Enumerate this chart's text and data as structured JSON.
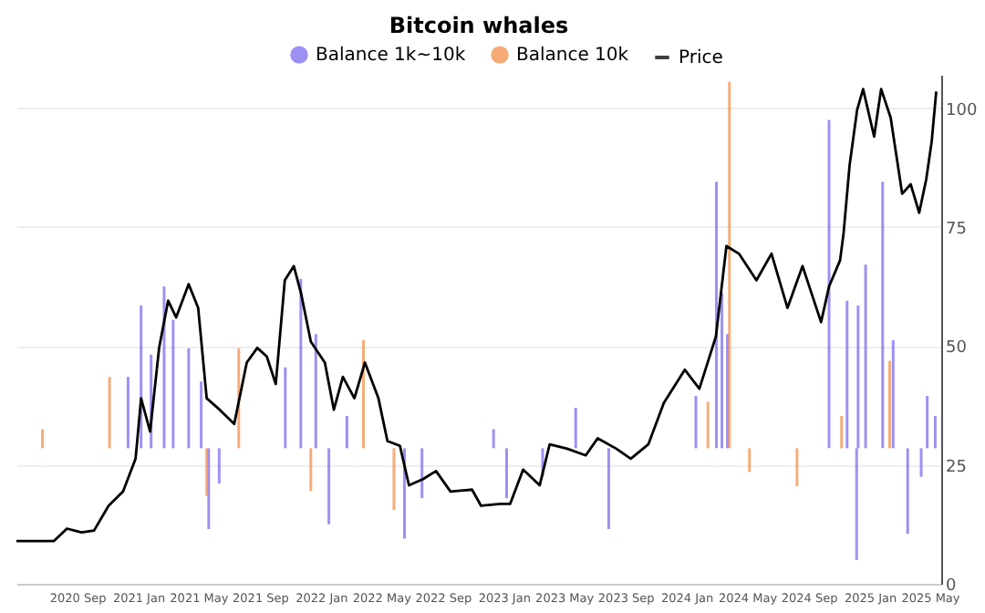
{
  "chart_data": {
    "type": "line",
    "title": "Bitcoin whales",
    "xlim": [
      "2020-05-01",
      "2025-05-22"
    ],
    "xticks": [
      {
        "value": "2020-09-01",
        "label": "2020 Sep"
      },
      {
        "value": "2021-01-01",
        "label": "2021 Jan"
      },
      {
        "value": "2021-05-01",
        "label": "2021 May"
      },
      {
        "value": "2021-09-01",
        "label": "2021 Sep"
      },
      {
        "value": "2022-01-01",
        "label": "2022 Jan"
      },
      {
        "value": "2022-05-01",
        "label": "2022 May"
      },
      {
        "value": "2022-09-01",
        "label": "2022 Sep"
      },
      {
        "value": "2023-01-01",
        "label": "2023 Jan"
      },
      {
        "value": "2023-05-01",
        "label": "2023 May"
      },
      {
        "value": "2023-09-01",
        "label": "2023 Sep"
      },
      {
        "value": "2024-01-01",
        "label": "2024 Jan"
      },
      {
        "value": "2024-05-01",
        "label": "2024 May"
      },
      {
        "value": "2024-09-01",
        "label": "2024 Sep"
      },
      {
        "value": "2025-01-01",
        "label": "2025 Jan"
      },
      {
        "value": "2025-05-01",
        "label": "2025 May"
      }
    ],
    "ylim": [
      0,
      107
    ],
    "yticks": [
      0,
      25,
      50,
      75,
      100
    ],
    "grid": "y",
    "legend": "top",
    "line_style": "solid",
    "series": [
      {
        "name": "Balance 1k~10k",
        "type": "bar",
        "color": "#7b6cf0",
        "x": [
          "2020-12-10",
          "2021-01-05",
          "2021-01-25",
          "2021-02-20",
          "2021-03-10",
          "2021-04-10",
          "2021-05-05",
          "2021-05-20",
          "2021-06-10",
          "2021-10-20",
          "2021-11-20",
          "2021-12-20",
          "2022-01-15",
          "2022-02-20",
          "2022-06-15",
          "2022-07-20",
          "2022-12-10",
          "2023-01-05",
          "2023-03-18",
          "2023-05-23",
          "2023-07-28",
          "2024-01-18",
          "2024-02-28",
          "2024-03-10",
          "2024-03-21",
          "2024-10-10",
          "2024-11-15",
          "2024-12-04",
          "2024-12-07",
          "2024-12-22",
          "2025-01-25",
          "2025-02-15",
          "2025-03-16",
          "2025-04-12",
          "2025-04-24",
          "2025-05-10"
        ],
        "base": [
          28.5,
          28.5,
          28.5,
          28.5,
          28.5,
          28.5,
          28.5,
          28.5,
          28.5,
          28.5,
          28.5,
          28.5,
          28.5,
          28.5,
          28.5,
          28.5,
          28.5,
          28.5,
          28.5,
          28.5,
          28.5,
          28.5,
          28.5,
          28.5,
          28.5,
          28.5,
          28.5,
          28.5,
          28.5,
          28.5,
          28.5,
          28.5,
          28.5,
          28.5,
          28.5,
          28.5
        ],
        "values": [
          15,
          30,
          19.7,
          34,
          27,
          21,
          14,
          -17,
          -7.4,
          17,
          35.6,
          24,
          -16,
          6.8,
          -19,
          -10.5,
          4,
          -10.5,
          -6,
          8.5,
          -17,
          11,
          56,
          32.6,
          24,
          69,
          31,
          -23.5,
          30,
          38.6,
          56,
          22.7,
          -18,
          -6,
          11,
          6.8
        ]
      },
      {
        "name": "Balance 10k",
        "type": "bar",
        "color": "#f4904a",
        "x": [
          "2020-06-22",
          "2020-11-03",
          "2021-05-16",
          "2021-07-19",
          "2021-12-10",
          "2022-03-25",
          "2022-05-25",
          "2024-02-11",
          "2024-03-25",
          "2024-05-04",
          "2024-08-07",
          "2024-11-04",
          "2025-02-08"
        ],
        "base": [
          28.5,
          28.5,
          28.5,
          28.5,
          28.5,
          28.5,
          28.5,
          28.5,
          28.5,
          28.5,
          28.5,
          28.5,
          28.5
        ],
        "values": [
          4,
          15,
          -10,
          21,
          -9,
          22.7,
          -13,
          9.8,
          77,
          -5,
          -8,
          6.8,
          18.4
        ]
      },
      {
        "name": "Price",
        "color": "#000000",
        "x": [
          "2020-05-01",
          "2020-07-15",
          "2020-08-10",
          "2020-09-08",
          "2020-10-03",
          "2020-11-01",
          "2020-11-30",
          "2020-12-25",
          "2021-01-05",
          "2021-01-23",
          "2021-02-10",
          "2021-02-28",
          "2021-03-16",
          "2021-04-10",
          "2021-04-29",
          "2021-05-16",
          "2021-06-11",
          "2021-07-10",
          "2021-08-04",
          "2021-08-25",
          "2021-09-13",
          "2021-10-01",
          "2021-10-19",
          "2021-11-06",
          "2021-11-21",
          "2021-12-10",
          "2022-01-07",
          "2022-01-25",
          "2022-02-12",
          "2022-03-07",
          "2022-03-28",
          "2022-04-24",
          "2022-05-12",
          "2022-06-06",
          "2022-06-24",
          "2022-07-22",
          "2022-08-17",
          "2022-09-15",
          "2022-10-28",
          "2022-11-15",
          "2022-12-24",
          "2023-01-12",
          "2023-02-07",
          "2023-03-12",
          "2023-04-01",
          "2023-05-06",
          "2023-06-12",
          "2023-07-06",
          "2023-08-12",
          "2023-09-10",
          "2023-10-15",
          "2023-11-15",
          "2023-12-27",
          "2024-01-25",
          "2024-02-27",
          "2024-03-19",
          "2024-04-13",
          "2024-05-18",
          "2024-06-17",
          "2024-07-19",
          "2024-08-18",
          "2024-09-24",
          "2024-10-10",
          "2024-11-01",
          "2024-11-08",
          "2024-11-20",
          "2024-12-05",
          "2024-12-17",
          "2025-01-08",
          "2025-01-22",
          "2025-02-10",
          "2025-03-05",
          "2025-03-22",
          "2025-04-08",
          "2025-04-22",
          "2025-05-03",
          "2025-05-12"
        ],
        "values": [
          9,
          9,
          11.6,
          10.8,
          11.2,
          16.4,
          19.4,
          26.3,
          39,
          32,
          49.6,
          59.5,
          56,
          63,
          58,
          39,
          36.6,
          33.6,
          46.5,
          49.6,
          47.8,
          42,
          63.8,
          66.8,
          60.8,
          50.9,
          46.5,
          36.6,
          43.5,
          39,
          46.5,
          39,
          30,
          29,
          20.7,
          22,
          23.7,
          19.4,
          19.8,
          16.4,
          16.8,
          16.8,
          24,
          20.7,
          29.3,
          28.4,
          27,
          30.6,
          28.4,
          26.3,
          29.3,
          38,
          45,
          41,
          52,
          71,
          69.4,
          63.8,
          69.4,
          58,
          66.8,
          55,
          62.5,
          68,
          73.7,
          88,
          99.6,
          104,
          94,
          104,
          98,
          82,
          84,
          78,
          85,
          93,
          103.5
        ]
      }
    ]
  }
}
